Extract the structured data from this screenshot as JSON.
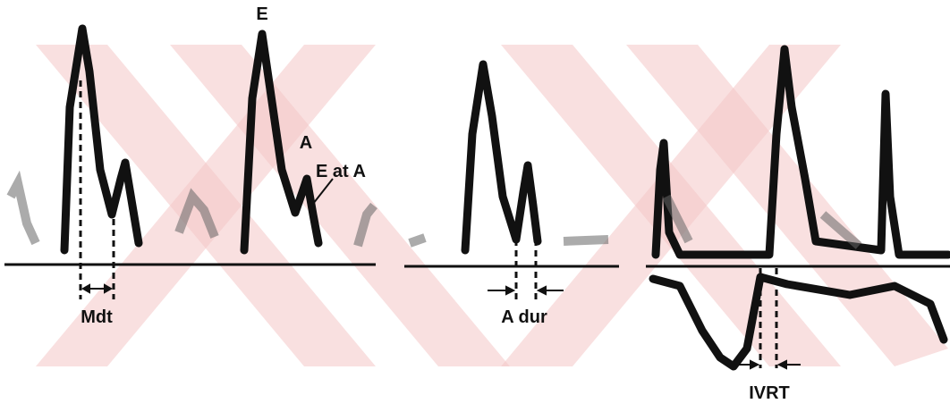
{
  "labels": {
    "e_peak": "E",
    "a_peak": "A",
    "e_at_a": "E at A",
    "mdt": "Mdt",
    "a_dur": "A dur",
    "ivrt": "IVRT"
  }
}
